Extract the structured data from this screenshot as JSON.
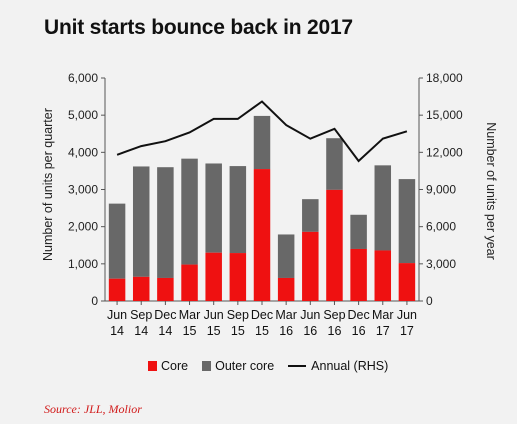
{
  "title": "Unit starts bounce back in 2017",
  "source": "Source: JLL, Molior",
  "colors": {
    "core": "#ef1111",
    "outer_core": "#686868",
    "annual": "#111111"
  },
  "legend": {
    "core": "Core",
    "outer_core": "Outer core",
    "annual": "Annual (RHS)"
  },
  "chart_data": {
    "type": "bar",
    "stacked": true,
    "title": "Unit starts bounce back in 2017",
    "ylabel": "Number of units per quarter",
    "ylabel_right": "Number of units per year",
    "ylim": [
      0,
      6000
    ],
    "ylim_right": [
      0,
      18000
    ],
    "yticks": [
      "0",
      "1,000",
      "2,000",
      "3,000",
      "4,000",
      "5,000",
      "6,000"
    ],
    "yticks_right": [
      "0",
      "3,000",
      "6,000",
      "9,000",
      "12,000",
      "15,000",
      "18,000"
    ],
    "yticks_values": [
      0,
      1000,
      2000,
      3000,
      4000,
      5000,
      6000
    ],
    "yticks_right_values": [
      0,
      3000,
      6000,
      9000,
      12000,
      15000,
      18000
    ],
    "categories": [
      [
        "Jun",
        "14"
      ],
      [
        "Sep",
        "14"
      ],
      [
        "Dec",
        "14"
      ],
      [
        "Mar",
        "15"
      ],
      [
        "Jun",
        "15"
      ],
      [
        "Sep",
        "15"
      ],
      [
        "Dec",
        "15"
      ],
      [
        "Mar",
        "16"
      ],
      [
        "Jun",
        "16"
      ],
      [
        "Sep",
        "16"
      ],
      [
        "Dec",
        "16"
      ],
      [
        "Mar",
        "17"
      ],
      [
        "Jun",
        "17"
      ]
    ],
    "series": [
      {
        "name": "Core",
        "type": "bar",
        "values": [
          600,
          650,
          620,
          980,
          1300,
          1290,
          3550,
          620,
          1860,
          2990,
          1400,
          1360,
          1020
        ]
      },
      {
        "name": "Outer core",
        "type": "bar",
        "values": [
          2020,
          2970,
          2980,
          2850,
          2400,
          2340,
          1430,
          1170,
          880,
          1390,
          920,
          2290,
          2260
        ]
      },
      {
        "name": "Annual (RHS)",
        "type": "line",
        "axis": "right",
        "values": [
          11800,
          12500,
          12900,
          13600,
          14700,
          14700,
          16100,
          14200,
          13100,
          13900,
          11300,
          13100,
          13700
        ]
      }
    ],
    "legend_position": "bottom",
    "grid": false
  }
}
